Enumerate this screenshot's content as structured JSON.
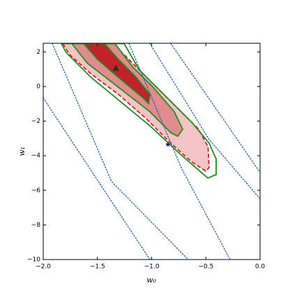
{
  "chart_data": {
    "type": "contour",
    "x_label": "w₀",
    "y_label": "w₁",
    "xlim": [
      -2.0,
      0.0
    ],
    "ylim": [
      -10,
      2.5
    ],
    "xticks": [
      {
        "value": -2.0,
        "label": "−2.0"
      },
      {
        "value": -1.5,
        "label": "−1.5"
      },
      {
        "value": -1.0,
        "label": "−1.0"
      },
      {
        "value": -0.5,
        "label": "−0.5"
      },
      {
        "value": 0.0,
        "label": "0.0"
      }
    ],
    "yticks": [
      {
        "value": -10,
        "label": "−10"
      },
      {
        "value": -8,
        "label": "−8"
      },
      {
        "value": -6,
        "label": "−6"
      },
      {
        "value": -4,
        "label": "−4"
      },
      {
        "value": -2,
        "label": "−2"
      },
      0,
      2
    ],
    "filled_contours": [
      {
        "color": "#f2c4c4",
        "edge_color": "#cc2222",
        "edge_style": "dashed",
        "x": [
          -1.82,
          -1.756,
          -1.563,
          -1.305,
          -1.048,
          -0.823,
          -0.63,
          -0.5,
          -0.47,
          -0.48,
          -0.566,
          -0.727,
          -0.92,
          -1.113,
          -1.273,
          -1.37
        ],
        "y": [
          2.48,
          1.84,
          0.75,
          -0.46,
          -1.87,
          -3.28,
          -4.36,
          -4.89,
          -4.69,
          -3.48,
          -2.47,
          -1.46,
          -0.26,
          0.95,
          1.96,
          2.48
        ]
      },
      {
        "color": "#e08c8c",
        "edge_color": "#228b22",
        "edge_style": "solid",
        "x": [
          -1.736,
          -1.595,
          -1.305,
          -1.016,
          -0.823,
          -0.759,
          -0.714,
          -0.791,
          -0.984,
          -1.177,
          -1.338
        ],
        "y": [
          2.48,
          1.36,
          -0.05,
          -1.46,
          -2.67,
          -2.87,
          -2.47,
          -1.46,
          -0.05,
          1.15,
          2.48
        ]
      },
      {
        "color": "#c0232a",
        "edge_color": "#228b22",
        "edge_style": "solid",
        "x": [
          -1.627,
          -1.498,
          -1.273,
          -1.08,
          -1.029,
          -1.016,
          -1.145,
          -1.305,
          -1.434
        ],
        "y": [
          2.48,
          1.56,
          0.35,
          -0.66,
          -0.98,
          -0.46,
          0.55,
          1.56,
          2.48
        ]
      }
    ],
    "line_contours": [
      {
        "color": "#228b22",
        "style": "solid",
        "closed": true,
        "x": [
          -1.833,
          -1.788,
          -1.563,
          -1.016,
          -0.727,
          -0.482,
          -0.405,
          -0.405,
          -0.469,
          -0.63,
          -0.855,
          -1.113,
          -1.254
        ],
        "y": [
          2.48,
          1.96,
          0.55,
          -2.27,
          -3.96,
          -5.29,
          -5.09,
          -4.2,
          -3.28,
          -2.07,
          -0.66,
          0.95,
          2.48
        ]
      },
      {
        "color": "#1f5fa8",
        "style": "dotted",
        "closed": false,
        "x": [
          -2.0,
          -1.016
        ],
        "y": [
          -0.66,
          -10
        ]
      },
      {
        "color": "#1f5fa8",
        "style": "dotted",
        "closed": false,
        "x": [
          -1.916,
          -1.37,
          -0.663
        ],
        "y": [
          2.48,
          -5.49,
          -10
        ]
      },
      {
        "color": "#1f5fa8",
        "style": "dotted",
        "closed": false,
        "x": [
          -1.209,
          -0.727,
          -0.277
        ],
        "y": [
          2.48,
          -4.69,
          -10
        ]
      },
      {
        "color": "#1f5fa8",
        "style": "dotted",
        "closed": false,
        "x": [
          -1.016,
          -0.469,
          0.0
        ],
        "y": [
          2.48,
          -3.07,
          -6.49
        ]
      },
      {
        "color": "#1f5fa8",
        "style": "dotted",
        "closed": false,
        "x": [
          -0.823,
          -0.341,
          0.0
        ],
        "y": [
          2.48,
          -1.87,
          -4.97
        ]
      }
    ],
    "markers": [
      {
        "shape": "triangle",
        "color": "#0b3d0b",
        "x": -1.33,
        "y": 1.05
      },
      {
        "shape": "star",
        "color": "#101060",
        "x": -0.85,
        "y": -3.35
      }
    ]
  }
}
